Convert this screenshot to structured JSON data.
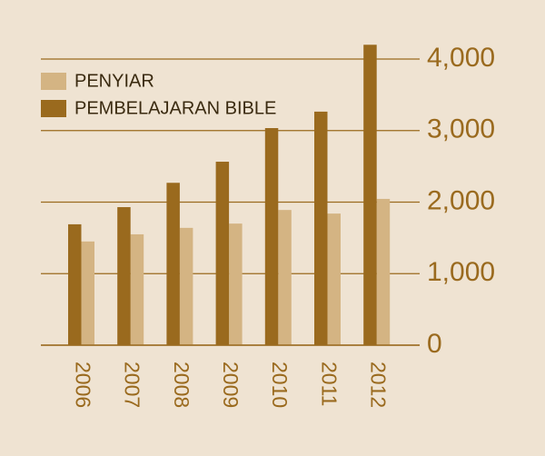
{
  "chart_data": {
    "type": "bar",
    "categories": [
      "2006",
      "2007",
      "2008",
      "2009",
      "2010",
      "2011",
      "2012"
    ],
    "series": [
      {
        "name": "PENYIAR",
        "color": "#d4b483",
        "values": [
          1450,
          1550,
          1640,
          1700,
          1890,
          1840,
          2045
        ]
      },
      {
        "name": "PEMBELAJARAN BIBLE",
        "color": "#9a6a1e",
        "values": [
          1690,
          1930,
          2270,
          2565,
          3035,
          3265,
          4200
        ]
      }
    ],
    "ylim": [
      0,
      4300
    ],
    "yticks": [
      0,
      {
        "value": 1000,
        "label": "1,000"
      },
      {
        "value": 2000,
        "label": "2,000"
      },
      {
        "value": 3000,
        "label": "3,000"
      },
      {
        "value": 4000,
        "label": "4,000"
      }
    ],
    "grid": true,
    "legend": "top-left"
  }
}
